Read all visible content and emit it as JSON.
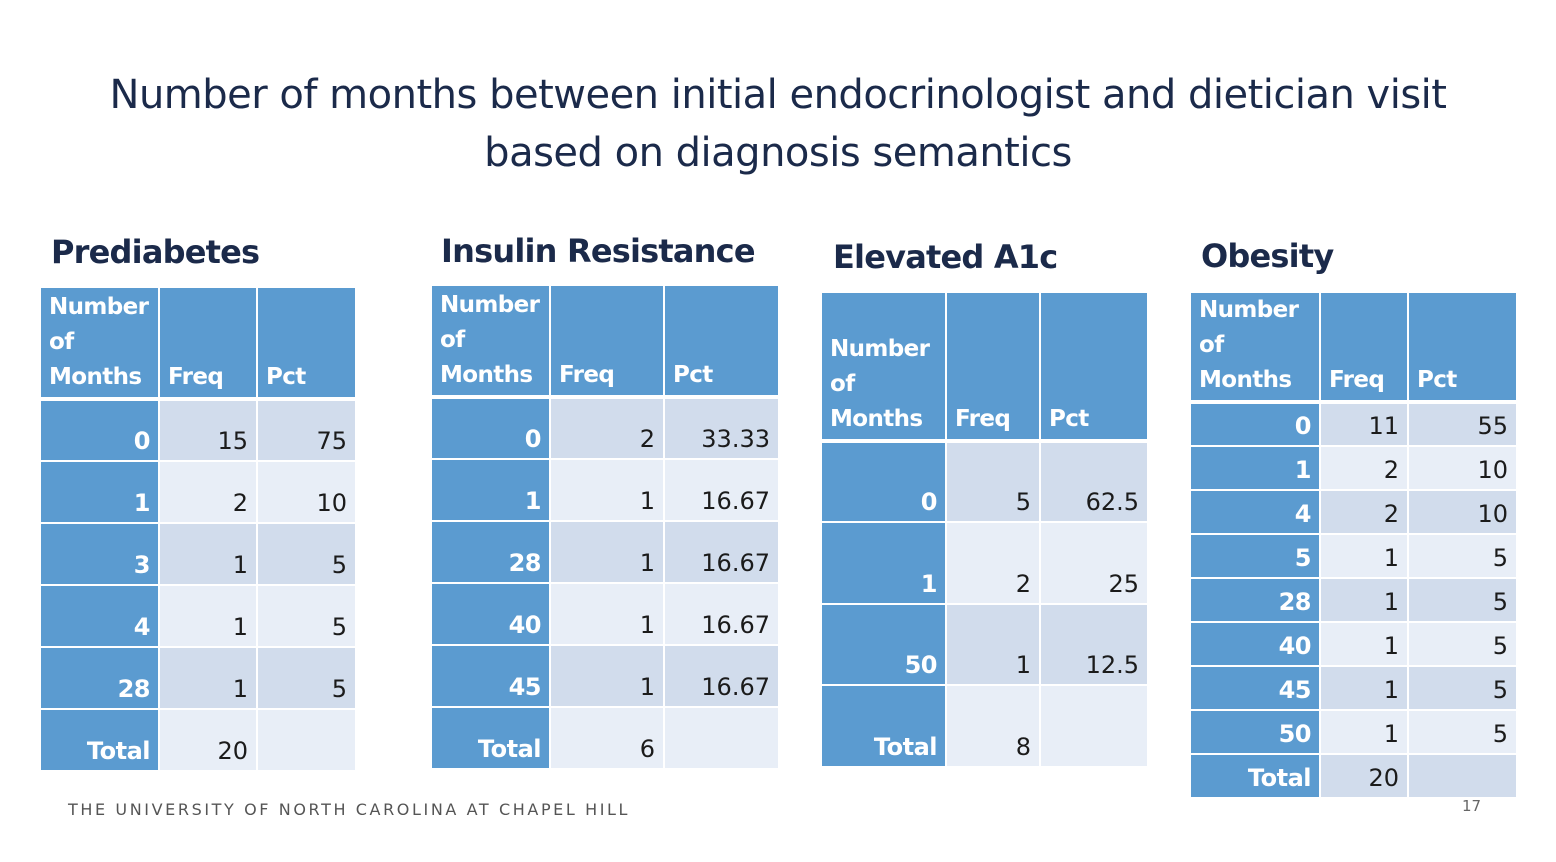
{
  "title": {
    "line1": "Number of months between initial endocrinologist and dietician visit",
    "line2": "based on diagnosis semantics"
  },
  "columns": {
    "months": [
      "Number",
      "of",
      "Months"
    ],
    "freq": "Freq",
    "pct": "Pct"
  },
  "panels": [
    {
      "name": "Prediabetes",
      "rows": [
        {
          "months": "0",
          "freq": "15",
          "pct": "75"
        },
        {
          "months": "1",
          "freq": "2",
          "pct": "10"
        },
        {
          "months": "3",
          "freq": "1",
          "pct": "5"
        },
        {
          "months": "4",
          "freq": "1",
          "pct": "5"
        },
        {
          "months": "28",
          "freq": "1",
          "pct": "5"
        },
        {
          "months": "Total",
          "freq": "20",
          "pct": ""
        }
      ]
    },
    {
      "name": "Insulin Resistance",
      "rows": [
        {
          "months": "0",
          "freq": "2",
          "pct": "33.33"
        },
        {
          "months": "1",
          "freq": "1",
          "pct": "16.67"
        },
        {
          "months": "28",
          "freq": "1",
          "pct": "16.67"
        },
        {
          "months": "40",
          "freq": "1",
          "pct": "16.67"
        },
        {
          "months": "45",
          "freq": "1",
          "pct": "16.67"
        },
        {
          "months": "Total",
          "freq": "6",
          "pct": ""
        }
      ]
    },
    {
      "name": "Elevated A1c",
      "rows": [
        {
          "months": "0",
          "freq": "5",
          "pct": "62.5"
        },
        {
          "months": "1",
          "freq": "2",
          "pct": "25"
        },
        {
          "months": "50",
          "freq": "1",
          "pct": "12.5"
        },
        {
          "months": "Total",
          "freq": "8",
          "pct": ""
        }
      ]
    },
    {
      "name": "Obesity",
      "rows": [
        {
          "months": "0",
          "freq": "11",
          "pct": "55"
        },
        {
          "months": "1",
          "freq": "2",
          "pct": "10"
        },
        {
          "months": "4",
          "freq": "2",
          "pct": "10"
        },
        {
          "months": "5",
          "freq": "1",
          "pct": "5"
        },
        {
          "months": "28",
          "freq": "1",
          "pct": "5"
        },
        {
          "months": "40",
          "freq": "1",
          "pct": "5"
        },
        {
          "months": "45",
          "freq": "1",
          "pct": "5"
        },
        {
          "months": "50",
          "freq": "1",
          "pct": "5"
        },
        {
          "months": "Total",
          "freq": "20",
          "pct": ""
        }
      ]
    }
  ],
  "footer": {
    "institution": "THE UNIVERSITY OF NORTH CAROLINA AT CHAPEL HILL",
    "page_number": "17"
  },
  "colors": {
    "header_blue": "#5b9bd0",
    "row_dark": "#d1dcec",
    "row_light": "#e8eef7",
    "title_navy": "#1b2a4a"
  }
}
